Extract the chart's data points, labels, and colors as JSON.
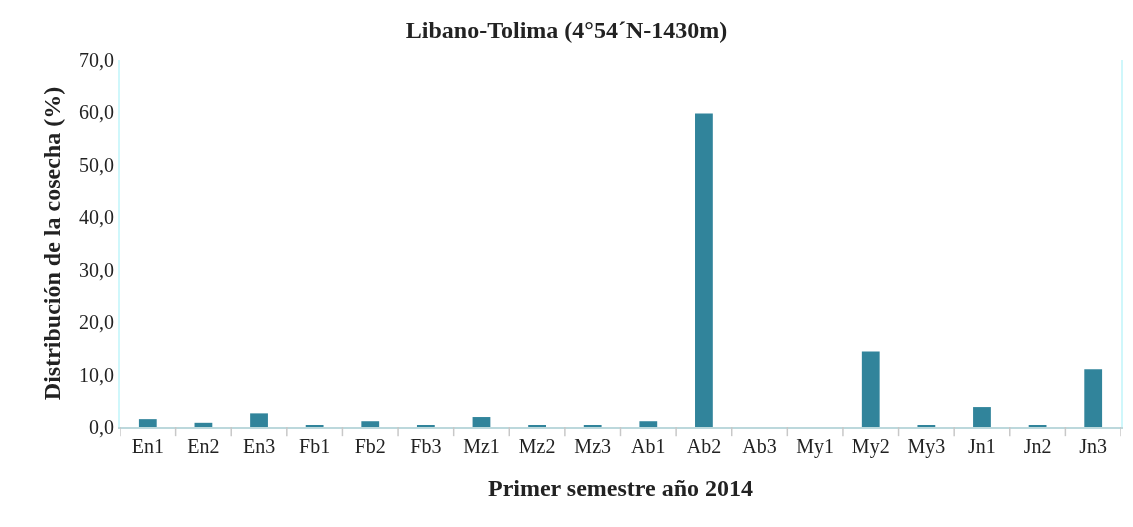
{
  "chart_data": {
    "type": "bar",
    "title": "Libano-Tolima (4°54´N-1430m)",
    "xlabel": "Primer semestre año 2014",
    "ylabel": "Distribución de la cosecha (%)",
    "categories": [
      "En1",
      "En2",
      "En3",
      "Fb1",
      "Fb2",
      "Fb3",
      "Mz1",
      "Mz2",
      "Mz3",
      "Ab1",
      "Ab2",
      "Ab3",
      "My1",
      "My2",
      "My3",
      "Jn1",
      "Jn2",
      "Jn3"
    ],
    "values": [
      1.5,
      0.8,
      2.6,
      0.3,
      1.1,
      0.3,
      1.9,
      0.3,
      0.3,
      1.1,
      59.8,
      0,
      0,
      14.4,
      0.3,
      3.8,
      0.3,
      11.0
    ],
    "color": "#31849b",
    "ylim": [
      0,
      70
    ],
    "yticks": [
      {
        "value": 0,
        "label": "0,0"
      },
      {
        "value": 10,
        "label": "10,0"
      },
      {
        "value": 20,
        "label": "20,0"
      },
      {
        "value": 30,
        "label": "30,0"
      },
      {
        "value": 40,
        "label": "40,0"
      },
      {
        "value": 50,
        "label": "50,0"
      },
      {
        "value": 60,
        "label": "60,0"
      },
      {
        "value": 70,
        "label": "70,0"
      }
    ]
  }
}
